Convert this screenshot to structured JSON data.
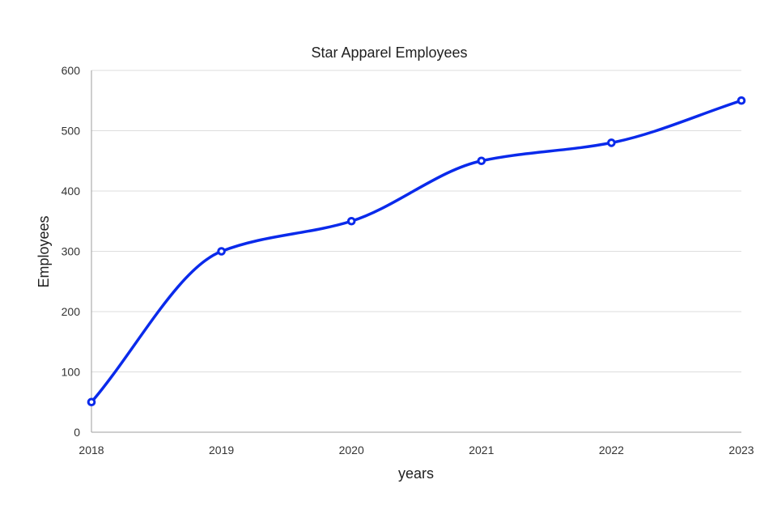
{
  "chart_data": {
    "type": "line",
    "title": "Star Apparel Employees",
    "xlabel": "years",
    "ylabel": "Employees",
    "x": [
      "2018",
      "2019",
      "2020",
      "2021",
      "2022",
      "2023"
    ],
    "series": [
      {
        "values": [
          50,
          300,
          350,
          450,
          480,
          550
        ]
      }
    ],
    "ylim": [
      0,
      600
    ],
    "yticks": [
      "0",
      "100",
      "200",
      "300",
      "400",
      "500",
      "600"
    ],
    "grid": true,
    "legend": "none",
    "smooth": true
  },
  "colors": {
    "series": "#0a2aeb"
  }
}
